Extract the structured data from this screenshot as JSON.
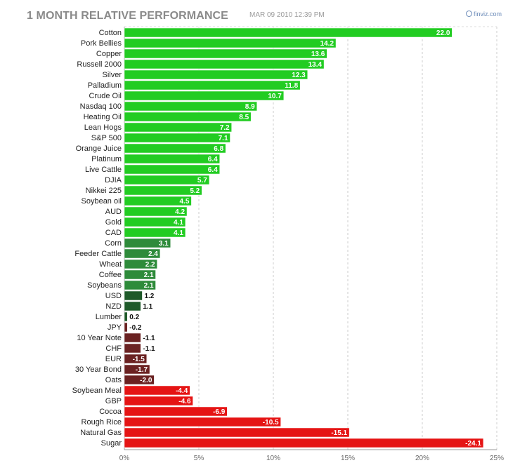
{
  "header": {
    "title": "1 MONTH RELATIVE PERFORMANCE",
    "timestamp": "MAR 09 2010 12:39 PM",
    "logo": "finviz.com"
  },
  "chart_data": {
    "type": "bar",
    "orientation": "horizontal",
    "title": "1 MONTH RELATIVE PERFORMANCE",
    "xlabel": "",
    "ylabel": "",
    "xlim": [
      0,
      25
    ],
    "x_tick_labels": [
      "0%",
      "5%",
      "10%",
      "15%",
      "20%",
      "25%"
    ],
    "grid": true,
    "legend": "none",
    "colors": {
      "positive_strong": "#22cc22",
      "positive_medium": "#2e8b3a",
      "positive_weak": "#1f5a2a",
      "negative_weak": "#6b2222",
      "negative_strong": "#e51414"
    },
    "categories": [
      "Cotton",
      "Pork Bellies",
      "Copper",
      "Russell 2000",
      "Silver",
      "Palladium",
      "Crude Oil",
      "Nasdaq 100",
      "Heating Oil",
      "Lean Hogs",
      "S&P 500",
      "Orange Juice",
      "Platinum",
      "Live Cattle",
      "DJIA",
      "Nikkei 225",
      "Soybean oil",
      "AUD",
      "Gold",
      "CAD",
      "Corn",
      "Feeder Cattle",
      "Wheat",
      "Coffee",
      "Soybeans",
      "USD",
      "NZD",
      "Lumber",
      "JPY",
      "10 Year Note",
      "CHF",
      "EUR",
      "30 Year Bond",
      "Oats",
      "Soybean Meal",
      "GBP",
      "Cocoa",
      "Rough Rice",
      "Natural Gas",
      "Sugar"
    ],
    "values": [
      22.0,
      14.2,
      13.6,
      13.4,
      12.3,
      11.8,
      10.7,
      8.9,
      8.5,
      7.2,
      7.1,
      6.8,
      6.4,
      6.4,
      5.7,
      5.2,
      4.5,
      4.2,
      4.1,
      4.1,
      3.1,
      2.4,
      2.2,
      2.1,
      2.1,
      1.2,
      1.1,
      0.2,
      -0.2,
      -1.1,
      -1.1,
      -1.5,
      -1.7,
      -2.0,
      -4.4,
      -4.6,
      -6.9,
      -10.5,
      -15.1,
      -24.1
    ],
    "value_labels": [
      "22.0",
      "14.2",
      "13.6",
      "13.4",
      "12.3",
      "11.8",
      "10.7",
      "8.9",
      "8.5",
      "7.2",
      "7.1",
      "6.8",
      "6.4",
      "6.4",
      "5.7",
      "5.2",
      "4.5",
      "4.2",
      "4.1",
      "4.1",
      "3.1",
      "2.4",
      "2.2",
      "2.1",
      "2.1",
      "1.2",
      "1.1",
      "0.2",
      "-0.2",
      "-1.1",
      "-1.1",
      "-1.5",
      "-1.7",
      "-2.0",
      "-4.4",
      "-4.6",
      "-6.9",
      "-10.5",
      "-15.1",
      "-24.1"
    ],
    "bar_length": "absolute value"
  }
}
